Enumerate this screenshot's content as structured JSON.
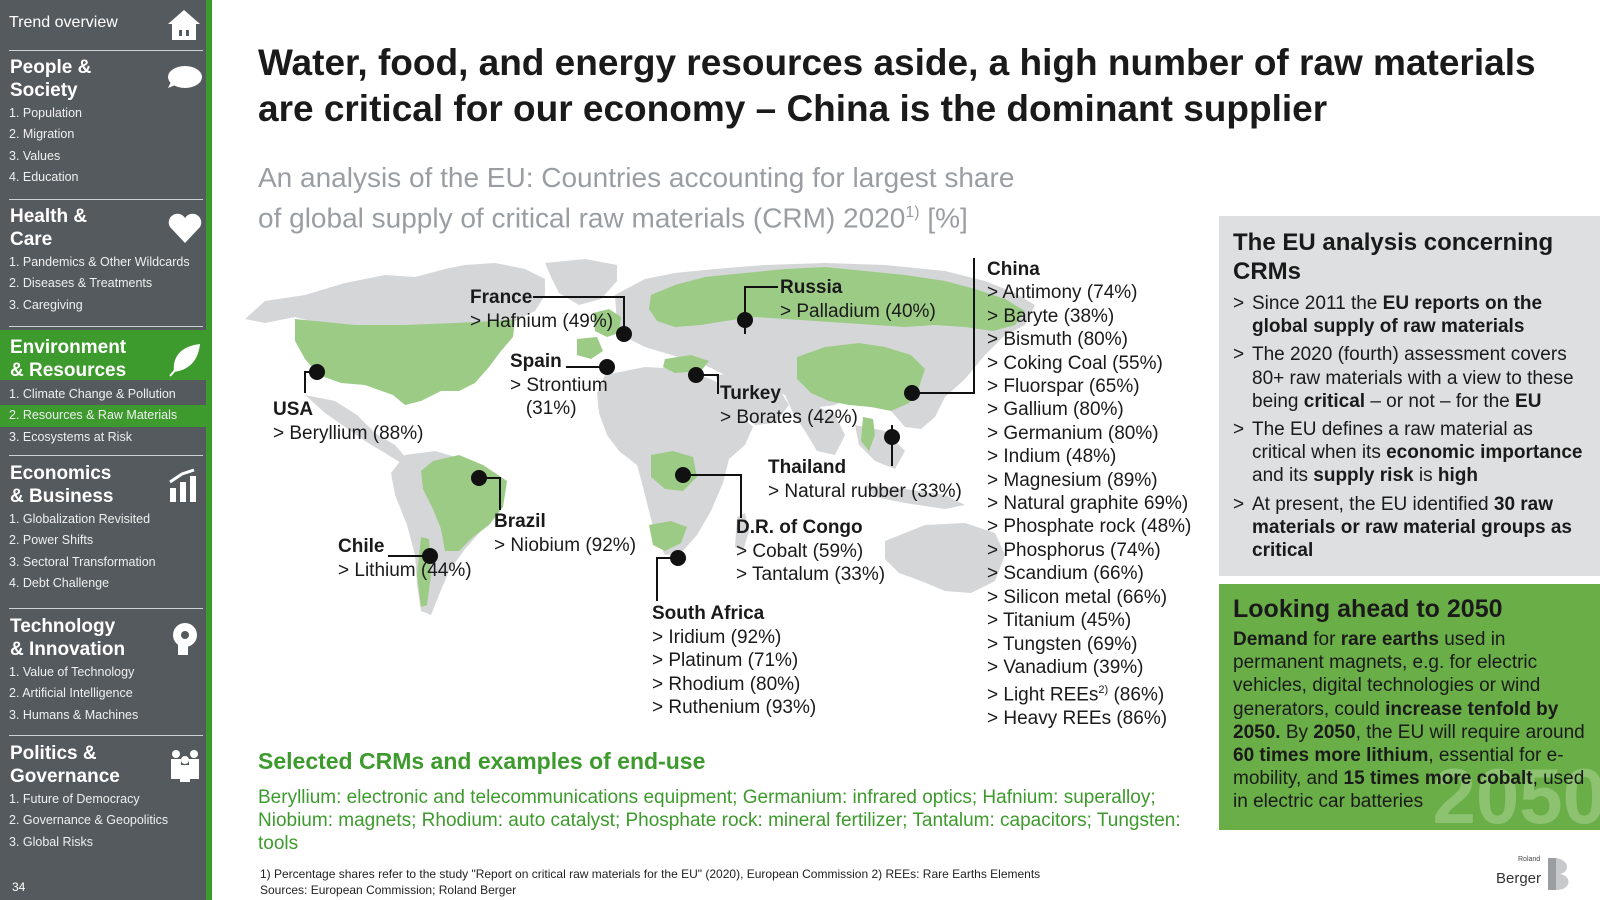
{
  "sidebar": {
    "top_label": "Trend overview",
    "sections": [
      {
        "title": "People &\nSociety",
        "items": [
          "1. Population",
          "2. Migration",
          "3. Values",
          "4. Education"
        ]
      },
      {
        "title": "Health &\nCare",
        "items": [
          "1. Pandemics & Other Wildcards",
          "2. Diseases & Treatments",
          "3. Caregiving"
        ]
      },
      {
        "title": "Environment\n& Resources",
        "items": [
          "1. Climate Change & Pollution",
          "2. Resources & Raw Materials",
          "3. Ecosystems at Risk"
        ]
      },
      {
        "title": "Economics\n& Business",
        "items": [
          "1. Globalization Revisited",
          "2. Power Shifts",
          "3. Sectoral Transformation",
          "4. Debt Challenge"
        ]
      },
      {
        "title": "Technology\n& Innovation",
        "items": [
          "1. Value of Technology",
          "2. Artificial Intelligence",
          "3. Humans & Machines"
        ]
      },
      {
        "title": "Politics &\nGovernance",
        "items": [
          "1. Future of Democracy",
          "2. Governance & Geopolitics",
          "3. Global Risks"
        ]
      }
    ],
    "page_number": "34"
  },
  "title": "Water, food, and energy resources aside, a high number of raw materials are critical for our economy – China is the dominant supplier",
  "subtitle": {
    "line1": "An analysis of the EU: Countries accounting for largest share",
    "line2": "of global supply of critical raw materials (CRM) 2020",
    "sup": "1)",
    "tail": " [%]"
  },
  "map_labels": {
    "usa": {
      "name": "USA",
      "items": [
        "> Beryllium (88%)"
      ]
    },
    "france": {
      "name": "France",
      "items": [
        "> Hafnium (49%)"
      ]
    },
    "spain": {
      "name": "Spain",
      "items": [
        "> Strontium",
        "   (31%)"
      ]
    },
    "russia": {
      "name": "Russia",
      "items": [
        "> Palladium (40%)"
      ]
    },
    "turkey": {
      "name": "Turkey",
      "items": [
        "> Borates (42%)"
      ]
    },
    "thailand": {
      "name": "Thailand",
      "items": [
        "> Natural rubber (33%)"
      ]
    },
    "brazil": {
      "name": "Brazil",
      "items": [
        "> Niobium (92%)"
      ]
    },
    "chile": {
      "name": "Chile",
      "items": [
        "> Lithium (44%)"
      ]
    },
    "congo": {
      "name": "D.R. of Congo",
      "items": [
        "> Cobalt (59%)",
        "> Tantalum (33%)"
      ]
    },
    "southafrica": {
      "name": "South Africa",
      "items": [
        "> Iridium (92%)",
        "> Platinum (71%)",
        "> Rhodium (80%)",
        "> Ruthenium (93%)"
      ]
    }
  },
  "china": {
    "name": "China",
    "items": [
      "> Antimony (74%)",
      "> Baryte (38%)",
      "> Bismuth (80%)",
      "> Coking Coal (55%)",
      "> Fluorspar (65%)",
      "> Gallium (80%)",
      "> Germanium (80%)",
      "> Indium (48%)",
      "> Magnesium (89%)",
      "> Natural graphite 69%)",
      "> Phosphate rock (48%)",
      "> Phosphorus (74%)",
      "> Scandium (66%)",
      "> Silicon metal (66%)",
      "> Titanium (45%)",
      "> Tungsten (69%)",
      "> Vanadium (39%)"
    ],
    "light_prefix": "> Light REEs",
    "light_sup": "2)",
    "light_suffix": " (86%)",
    "heavy": "> Heavy REEs (86%)"
  },
  "crm": {
    "heading": "Selected CRMs and examples of end-use",
    "text": "Beryllium: electronic and telecommunications equipment; Germanium: infrared optics; Hafnium: superalloy; Niobium: magnets; Rhodium: auto catalyst; Phosphate rock: mineral fertilizer; Tantalum: capacitors; Tungsten: tools"
  },
  "footnote": {
    "line1": "1) Percentage shares refer to the study \"Report on critical raw materials for the EU\" (2020), European Commission  2) REEs: Rare Earths Elements",
    "line2": "Sources: European Commission; Roland Berger"
  },
  "eu_box": {
    "heading": "The EU analysis concerning CRMs",
    "b1_pre": "Since 2011 the ",
    "b1_bold": "EU reports on the global supply of raw materials",
    "b2_pre": "The 2020 (fourth) assessment covers 80+ raw materials with a view to these being ",
    "b2_b1": "critical",
    "b2_mid": " – or not – for the ",
    "b2_b2": "EU",
    "b3_pre": "The EU defines a raw material as critical when its ",
    "b3_b1": "economic importance",
    "b3_mid": " and its ",
    "b3_b2": "supply risk",
    "b3_mid2": " is ",
    "b3_b3": "high",
    "b4_pre": "At present, the EU identified ",
    "b4_bold": "30 raw materials or raw material groups as critical"
  },
  "outlook_box": {
    "heading": "Looking ahead to 2050",
    "p_b1": "Demand",
    "p_t1": " for ",
    "p_b2": "rare earths",
    "p_t2": " used in permanent magnets, e.g. for electric vehicles, digital technologies or wind generators, could ",
    "p_b3": "increase tenfold by 2050.",
    "p_t3": " By ",
    "p_b4": "2050",
    "p_t4": ", the EU will require around ",
    "p_b5": "60 times more lithium",
    "p_t5": ", essential for e-mobility, and ",
    "p_b6": "15 times more cobalt",
    "p_t6": ", used in electric car batteries",
    "watermark": "2050"
  },
  "logo": {
    "small": "Roland",
    "big": "Berger"
  },
  "colors": {
    "accent_green": "#3d9a2c",
    "map_green": "#9ccb86",
    "map_grey": "#d5d6d7",
    "sidebar_grey": "#555a5e"
  }
}
